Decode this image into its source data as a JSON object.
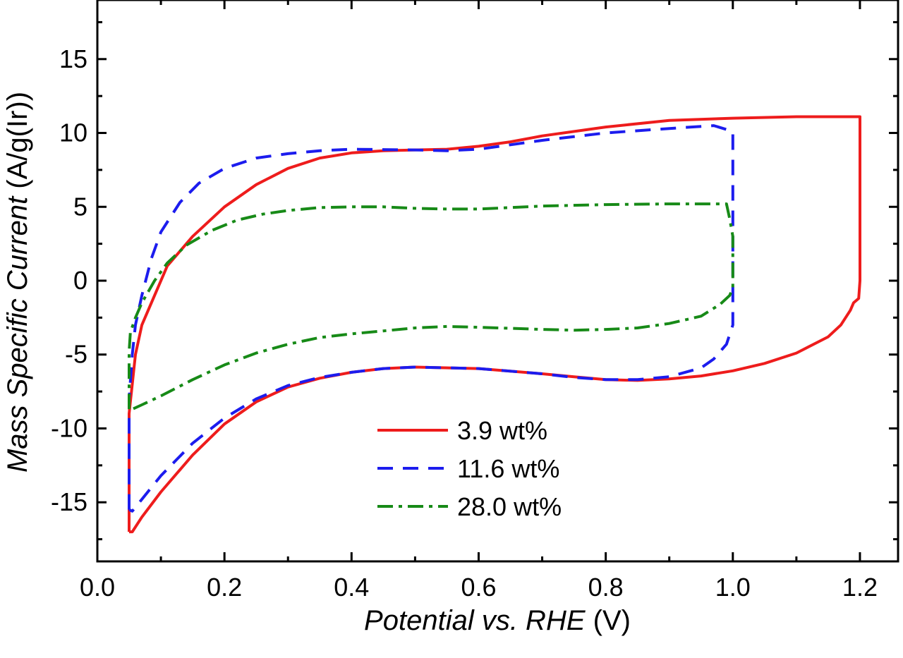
{
  "chart_data": {
    "type": "line",
    "title": "",
    "xlabel": {
      "italic": "Potential vs. RHE",
      "normal": " (V)"
    },
    "ylabel": {
      "italic": "Mass Specific Current",
      "normal": " (A/g(Ir))"
    },
    "xlim": [
      0.0,
      1.26
    ],
    "ylim": [
      -19,
      19
    ],
    "xticks": [
      {
        "value": 0.0,
        "label": "0.0"
      },
      {
        "value": 0.2,
        "label": "0.2"
      },
      {
        "value": 0.4,
        "label": "0.4"
      },
      {
        "value": 0.6,
        "label": "0.6"
      },
      {
        "value": 0.8,
        "label": "0.8"
      },
      {
        "value": 1.0,
        "label": "1.0"
      },
      {
        "value": 1.2,
        "label": "1.2"
      }
    ],
    "xminor": [
      0.1,
      0.3,
      0.5,
      0.7,
      0.9,
      1.1
    ],
    "yticks": [
      {
        "value": -15,
        "label": "-15"
      },
      {
        "value": -10,
        "label": "-10"
      },
      {
        "value": -5,
        "label": "-5"
      },
      {
        "value": 0,
        "label": "0"
      },
      {
        "value": 5,
        "label": "5"
      },
      {
        "value": 10,
        "label": "10"
      },
      {
        "value": 15,
        "label": "15"
      }
    ],
    "yminor": [
      -17.5,
      -12.5,
      -7.5,
      -2.5,
      2.5,
      7.5,
      12.5,
      17.5
    ],
    "legend_position": "bottom-center",
    "series": [
      {
        "name": "3.9 wt%",
        "color": "#ee1c1c",
        "dash": "solid",
        "points": [
          [
            0.05,
            -17.0
          ],
          [
            0.05,
            -12.0
          ],
          [
            0.05,
            -9.0
          ],
          [
            0.055,
            -7.0
          ],
          [
            0.06,
            -5.0
          ],
          [
            0.07,
            -3.0
          ],
          [
            0.09,
            -1.0
          ],
          [
            0.11,
            1.0
          ],
          [
            0.15,
            3.0
          ],
          [
            0.2,
            5.0
          ],
          [
            0.25,
            6.5
          ],
          [
            0.3,
            7.6
          ],
          [
            0.35,
            8.3
          ],
          [
            0.4,
            8.65
          ],
          [
            0.45,
            8.8
          ],
          [
            0.5,
            8.85
          ],
          [
            0.55,
            8.9
          ],
          [
            0.6,
            9.1
          ],
          [
            0.65,
            9.4
          ],
          [
            0.7,
            9.8
          ],
          [
            0.8,
            10.4
          ],
          [
            0.9,
            10.85
          ],
          [
            1.0,
            11.0
          ],
          [
            1.1,
            11.1
          ],
          [
            1.2,
            11.1
          ],
          [
            1.2,
            10.0
          ],
          [
            1.2,
            5.0
          ],
          [
            1.2,
            0.0
          ],
          [
            1.198,
            -1.2
          ],
          [
            1.19,
            -1.5
          ],
          [
            1.185,
            -2.0
          ],
          [
            1.17,
            -3.0
          ],
          [
            1.15,
            -3.8
          ],
          [
            1.1,
            -4.9
          ],
          [
            1.05,
            -5.6
          ],
          [
            1.0,
            -6.1
          ],
          [
            0.95,
            -6.45
          ],
          [
            0.9,
            -6.65
          ],
          [
            0.85,
            -6.75
          ],
          [
            0.8,
            -6.7
          ],
          [
            0.75,
            -6.5
          ],
          [
            0.7,
            -6.3
          ],
          [
            0.6,
            -5.95
          ],
          [
            0.5,
            -5.85
          ],
          [
            0.45,
            -5.95
          ],
          [
            0.4,
            -6.2
          ],
          [
            0.35,
            -6.6
          ],
          [
            0.3,
            -7.2
          ],
          [
            0.25,
            -8.2
          ],
          [
            0.2,
            -9.7
          ],
          [
            0.15,
            -11.8
          ],
          [
            0.1,
            -14.3
          ],
          [
            0.07,
            -16.0
          ],
          [
            0.055,
            -17.0
          ],
          [
            0.05,
            -17.0
          ]
        ]
      },
      {
        "name": "11.6 wt%",
        "color": "#1c1cee",
        "dash": "dashed",
        "points": [
          [
            0.05,
            -15.5
          ],
          [
            0.05,
            -11.0
          ],
          [
            0.05,
            -8.0
          ],
          [
            0.055,
            -5.0
          ],
          [
            0.06,
            -3.0
          ],
          [
            0.07,
            -1.0
          ],
          [
            0.085,
            1.5
          ],
          [
            0.1,
            3.3
          ],
          [
            0.13,
            5.3
          ],
          [
            0.16,
            6.6
          ],
          [
            0.2,
            7.6
          ],
          [
            0.25,
            8.3
          ],
          [
            0.3,
            8.6
          ],
          [
            0.35,
            8.8
          ],
          [
            0.4,
            8.9
          ],
          [
            0.5,
            8.85
          ],
          [
            0.55,
            8.8
          ],
          [
            0.6,
            8.9
          ],
          [
            0.65,
            9.2
          ],
          [
            0.7,
            9.5
          ],
          [
            0.8,
            10.0
          ],
          [
            0.9,
            10.3
          ],
          [
            0.97,
            10.5
          ],
          [
            1.0,
            10.1
          ],
          [
            1.0,
            8.0
          ],
          [
            1.0,
            5.0
          ],
          [
            1.0,
            0.0
          ],
          [
            1.0,
            -3.0
          ],
          [
            0.99,
            -4.3
          ],
          [
            0.97,
            -5.3
          ],
          [
            0.95,
            -5.9
          ],
          [
            0.9,
            -6.5
          ],
          [
            0.85,
            -6.7
          ],
          [
            0.8,
            -6.7
          ],
          [
            0.75,
            -6.55
          ],
          [
            0.7,
            -6.3
          ],
          [
            0.6,
            -5.95
          ],
          [
            0.5,
            -5.85
          ],
          [
            0.45,
            -5.95
          ],
          [
            0.4,
            -6.2
          ],
          [
            0.35,
            -6.55
          ],
          [
            0.3,
            -7.1
          ],
          [
            0.25,
            -8.0
          ],
          [
            0.2,
            -9.3
          ],
          [
            0.15,
            -11.0
          ],
          [
            0.1,
            -13.2
          ],
          [
            0.07,
            -14.8
          ],
          [
            0.055,
            -15.6
          ],
          [
            0.05,
            -15.5
          ]
        ]
      },
      {
        "name": "28.0 wt%",
        "color": "#178a17",
        "dash": "dashdot",
        "points": [
          [
            0.05,
            -8.7
          ],
          [
            0.05,
            -6.0
          ],
          [
            0.05,
            -4.8
          ],
          [
            0.052,
            -3.5
          ],
          [
            0.06,
            -2.5
          ],
          [
            0.07,
            -1.5
          ],
          [
            0.09,
            0.0
          ],
          [
            0.11,
            1.2
          ],
          [
            0.14,
            2.4
          ],
          [
            0.18,
            3.4
          ],
          [
            0.22,
            4.1
          ],
          [
            0.26,
            4.5
          ],
          [
            0.3,
            4.75
          ],
          [
            0.35,
            4.95
          ],
          [
            0.4,
            5.0
          ],
          [
            0.45,
            5.0
          ],
          [
            0.5,
            4.9
          ],
          [
            0.55,
            4.85
          ],
          [
            0.6,
            4.85
          ],
          [
            0.65,
            4.95
          ],
          [
            0.7,
            5.05
          ],
          [
            0.8,
            5.15
          ],
          [
            0.9,
            5.2
          ],
          [
            0.99,
            5.2
          ],
          [
            0.995,
            4.2
          ],
          [
            1.0,
            3.0
          ],
          [
            1.0,
            1.0
          ],
          [
            1.0,
            -0.5
          ],
          [
            0.995,
            -1.0
          ],
          [
            0.98,
            -1.6
          ],
          [
            0.95,
            -2.4
          ],
          [
            0.9,
            -2.9
          ],
          [
            0.85,
            -3.2
          ],
          [
            0.8,
            -3.3
          ],
          [
            0.75,
            -3.35
          ],
          [
            0.7,
            -3.3
          ],
          [
            0.6,
            -3.15
          ],
          [
            0.55,
            -3.1
          ],
          [
            0.5,
            -3.2
          ],
          [
            0.45,
            -3.4
          ],
          [
            0.4,
            -3.6
          ],
          [
            0.35,
            -3.85
          ],
          [
            0.3,
            -4.3
          ],
          [
            0.25,
            -4.9
          ],
          [
            0.2,
            -5.7
          ],
          [
            0.15,
            -6.7
          ],
          [
            0.1,
            -7.8
          ],
          [
            0.07,
            -8.4
          ],
          [
            0.055,
            -8.7
          ],
          [
            0.05,
            -8.7
          ]
        ]
      }
    ]
  }
}
